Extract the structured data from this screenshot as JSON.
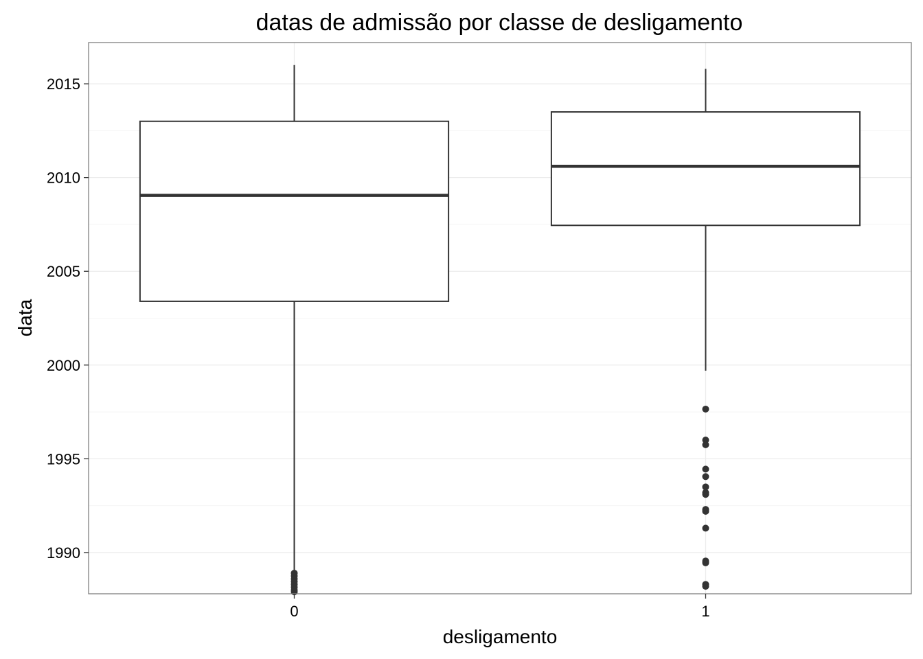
{
  "chart_data": {
    "type": "boxplot",
    "title": "datas de admissão por classe de desligamento",
    "xlabel": "desligamento",
    "ylabel": "data",
    "categories": [
      "0",
      "1"
    ],
    "ylim": [
      1987.8,
      2017.2
    ],
    "yticks": [
      1990,
      1995,
      2000,
      2005,
      2010,
      2015
    ],
    "grid": true,
    "legend": "none",
    "boxes": [
      {
        "category": "0",
        "whisker_low": 1988.8,
        "q1": 2003.4,
        "median": 2009.05,
        "q3": 2013.0,
        "whisker_high": 2016.0,
        "outliers": [
          1988.9,
          1988.75,
          1988.6,
          1988.45,
          1988.3,
          1988.15,
          1988.0,
          1987.9
        ]
      },
      {
        "category": "1",
        "whisker_low": 1999.7,
        "q1": 2007.45,
        "median": 2010.6,
        "q3": 2013.5,
        "whisker_high": 2015.8,
        "outliers": [
          1997.65,
          1996.0,
          1995.75,
          1994.45,
          1994.05,
          1993.5,
          1993.2,
          1993.1,
          1992.3,
          1992.2,
          1991.3,
          1989.55,
          1989.45,
          1988.3,
          1988.2
        ]
      }
    ],
    "colors": {
      "box_line": "#333333",
      "outlier": "#333333",
      "grid_major": "#ebebeb",
      "grid_minor": "#f5f5f5",
      "panel_border": "#7f7f7f",
      "background": "#ffffff"
    }
  }
}
